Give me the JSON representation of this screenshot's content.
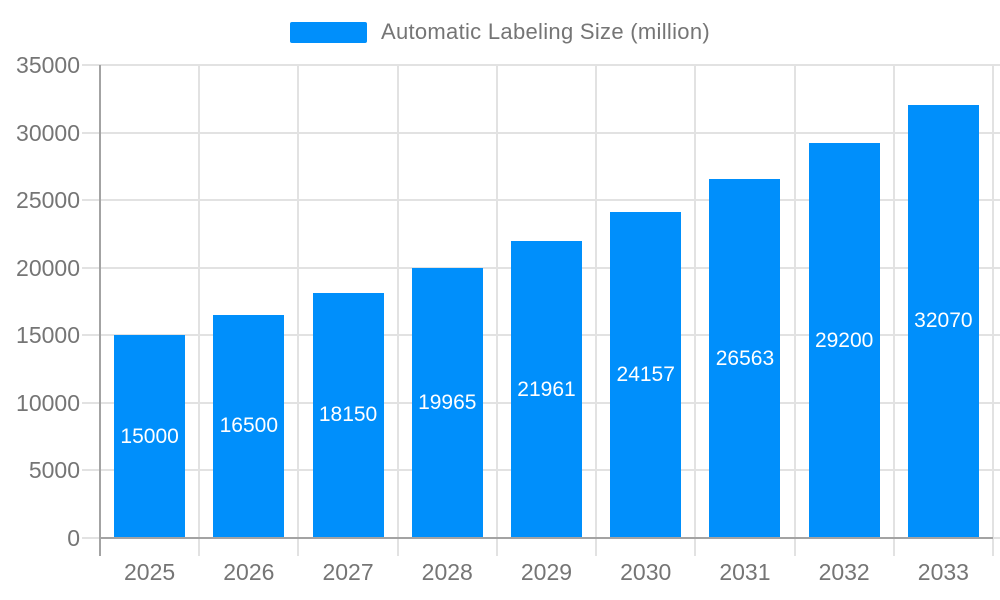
{
  "legend": {
    "label": "Automatic Labeling Size (million)"
  },
  "chart_data": {
    "type": "bar",
    "title": "",
    "xlabel": "",
    "ylabel": "",
    "categories": [
      "2025",
      "2026",
      "2027",
      "2028",
      "2029",
      "2030",
      "2031",
      "2032",
      "2033"
    ],
    "series": [
      {
        "name": "Automatic Labeling Size (million)",
        "values": [
          15000,
          16500,
          18150,
          19965,
          21961,
          24157,
          26563,
          29200,
          32070
        ]
      }
    ],
    "ylim": [
      0,
      35000
    ],
    "yticks": [
      0,
      5000,
      10000,
      15000,
      20000,
      25000,
      30000,
      35000
    ],
    "grid": true,
    "legend_position": "top",
    "colors": {
      "bar": "#008FFB",
      "grid": "#e2e2e2",
      "axis": "#a3a3a3",
      "tick_label": "#757575",
      "data_label": "#ffffff",
      "background": "#ffffff"
    }
  }
}
